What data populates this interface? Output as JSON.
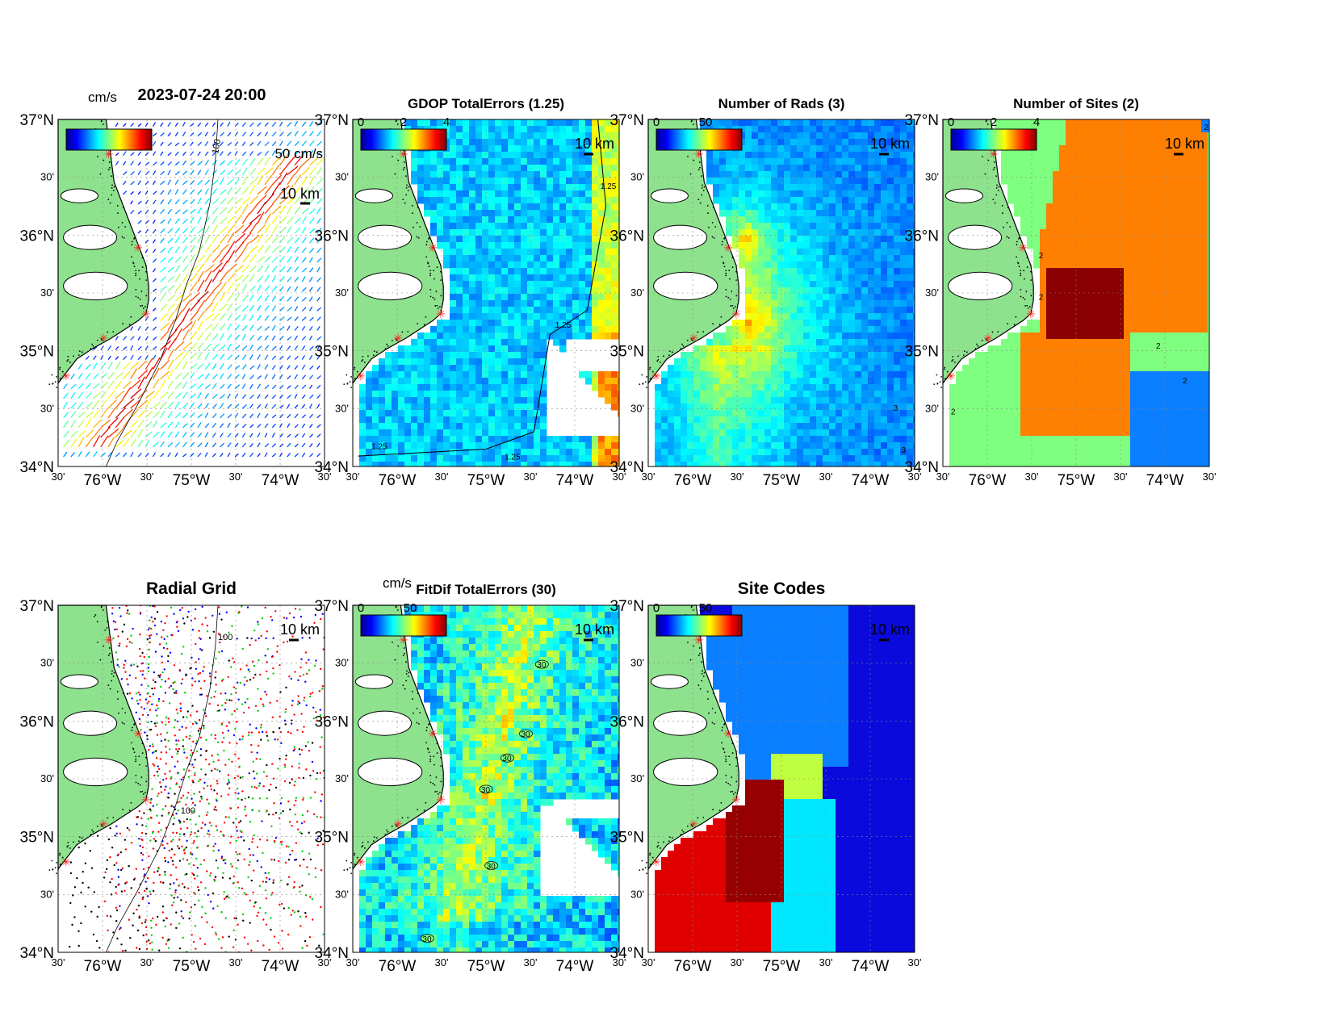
{
  "figure": {
    "timestamp": "2023-07-24 20:00",
    "lat_labels": [
      "37°N",
      "30'",
      "36°N",
      "30'",
      "35°N",
      "30'",
      "34°N"
    ],
    "lon_labels": [
      "30'",
      "76°W",
      "30'",
      "75°W",
      "30'",
      "74°W",
      "30'"
    ],
    "scale_bar_label": "10 km",
    "site_marker_color": "#ff1a1a",
    "land_color": "#8ee28e"
  },
  "panels": [
    {
      "id": "currents",
      "title": "",
      "colorbar": {
        "unit": "cm/s",
        "ticks": [],
        "ramp": "jet"
      },
      "extra_labels": {
        "vector_scale": "50 cm/s",
        "isobath": "100"
      }
    },
    {
      "id": "gdop",
      "title": "GDOP TotalErrors (1.25)",
      "colorbar": {
        "unit": "",
        "ticks": [
          "0",
          "2",
          "4"
        ],
        "ramp": "jet"
      },
      "contour_labels": [
        "1.25",
        "1.25",
        "1.25",
        "1.25"
      ]
    },
    {
      "id": "rads",
      "title": "Number of Rads (3)",
      "colorbar": {
        "unit": "",
        "ticks": [
          "0",
          "50"
        ],
        "ramp": "jet"
      },
      "contour_labels": [
        "3",
        "3"
      ]
    },
    {
      "id": "sites",
      "title": "Number of Sites (2)",
      "colorbar": {
        "unit": "",
        "ticks": [
          "0",
          "2",
          "4"
        ],
        "ramp": "jet"
      },
      "contour_labels": [
        "2",
        "2",
        "2",
        "2",
        "2",
        "2"
      ]
    },
    {
      "id": "radialgrid",
      "title": "Radial Grid",
      "colorbar": null,
      "contour_labels": [
        "100",
        "100"
      ]
    },
    {
      "id": "fitdif",
      "title": "FitDif TotalErrors (30)",
      "colorbar": {
        "unit": "cm/s",
        "ticks": [
          "0",
          "50"
        ],
        "ramp": "jet"
      },
      "contour_labels": [
        "30",
        "30",
        "30",
        "30",
        "30",
        "30"
      ]
    },
    {
      "id": "sitecodes",
      "title": "Site Codes",
      "colorbar": {
        "unit": "",
        "ticks": [
          "0",
          "50"
        ],
        "ramp": "jet"
      }
    }
  ],
  "map_colors": {
    "sites_orange": "#ff7f00",
    "sites_green": "#7fff7f",
    "sites_blue": "#0a7fff",
    "sites_dark": "#8b0000",
    "codes_blue": "#0a7fff",
    "codes_navy": "#0a0adc",
    "codes_red": "#e00000",
    "codes_dark": "#960000",
    "codes_cyan": "#00e8ff",
    "codes_yellow": "#bfff3f"
  }
}
